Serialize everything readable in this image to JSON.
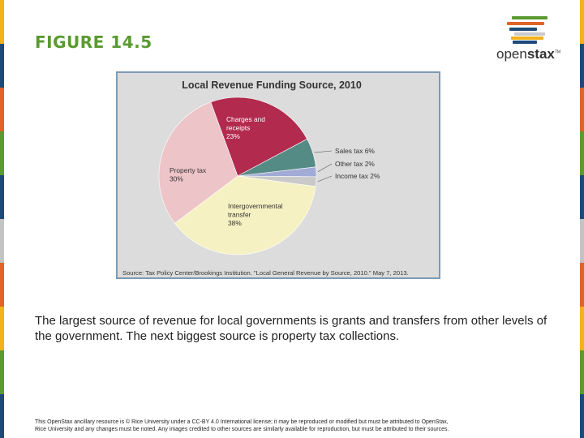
{
  "slide": {
    "figure_title": "FIGURE 14.5",
    "caption": "The largest source of revenue for local governments is grants and transfers from other levels of the government. The next biggest source is property tax collections.",
    "footer_line1": "This OpenStax ancillary resource is © Rice University under a CC-BY 4.0 International license; it may be reproduced or modified but must be attributed to OpenStax,",
    "footer_line2": "Rice University and any changes must be noted. Any images credited to other sources are similarly available for reproduction, but must be attributed to their sources.",
    "logo_text_light": "open",
    "logo_text_bold": "stax",
    "logo_tm": "TM",
    "edge_colors": [
      "#f3b21b",
      "#1d4a78",
      "#e0632a",
      "#5a9a30",
      "#1d4a78",
      "#c4c4c4",
      "#e0632a",
      "#f3b21b",
      "#5a9a30",
      "#1d4a78"
    ],
    "logo_colors": [
      "#5a9a30",
      "#e0632a",
      "#1d4a78",
      "#c9c9c9",
      "#f3b21b",
      "#1d4a78"
    ]
  },
  "chart_data": {
    "type": "pie",
    "title": "Local Revenue Funding Source, 2010",
    "source": "Source: Tax Policy Center/Brookings Institution. \"Local General Revenue by Source, 2010.\" May 7, 2013.",
    "slices": [
      {
        "name": "Charges and receipts",
        "value": 23,
        "label_lines": [
          "Charges and",
          "receipts",
          "23%"
        ],
        "color": "#b22a4d",
        "text_color": "#ffffff",
        "label_mode": "inside"
      },
      {
        "name": "Sales tax",
        "value": 6,
        "label_lines": [
          "Sales tax 6%"
        ],
        "color": "#548b84",
        "text_color": "#333333",
        "label_mode": "callout"
      },
      {
        "name": "Other tax",
        "value": 2,
        "label_lines": [
          "Other tax 2%"
        ],
        "color": "#a2abd6",
        "text_color": "#333333",
        "label_mode": "callout"
      },
      {
        "name": "Income tax",
        "value": 2,
        "label_lines": [
          "Income tax 2%"
        ],
        "color": "#c9c9c9",
        "text_color": "#333333",
        "label_mode": "callout"
      },
      {
        "name": "Intergovernmental transfer",
        "value": 38,
        "label_lines": [
          "Intergovernmental",
          "transfer",
          "38%"
        ],
        "color": "#f6f1c2",
        "text_color": "#333333",
        "label_mode": "inside"
      },
      {
        "name": "Property tax",
        "value": 30,
        "label_lines": [
          "Property tax",
          "30%"
        ],
        "color": "#edc4c8",
        "text_color": "#333333",
        "label_mode": "inside"
      }
    ]
  }
}
